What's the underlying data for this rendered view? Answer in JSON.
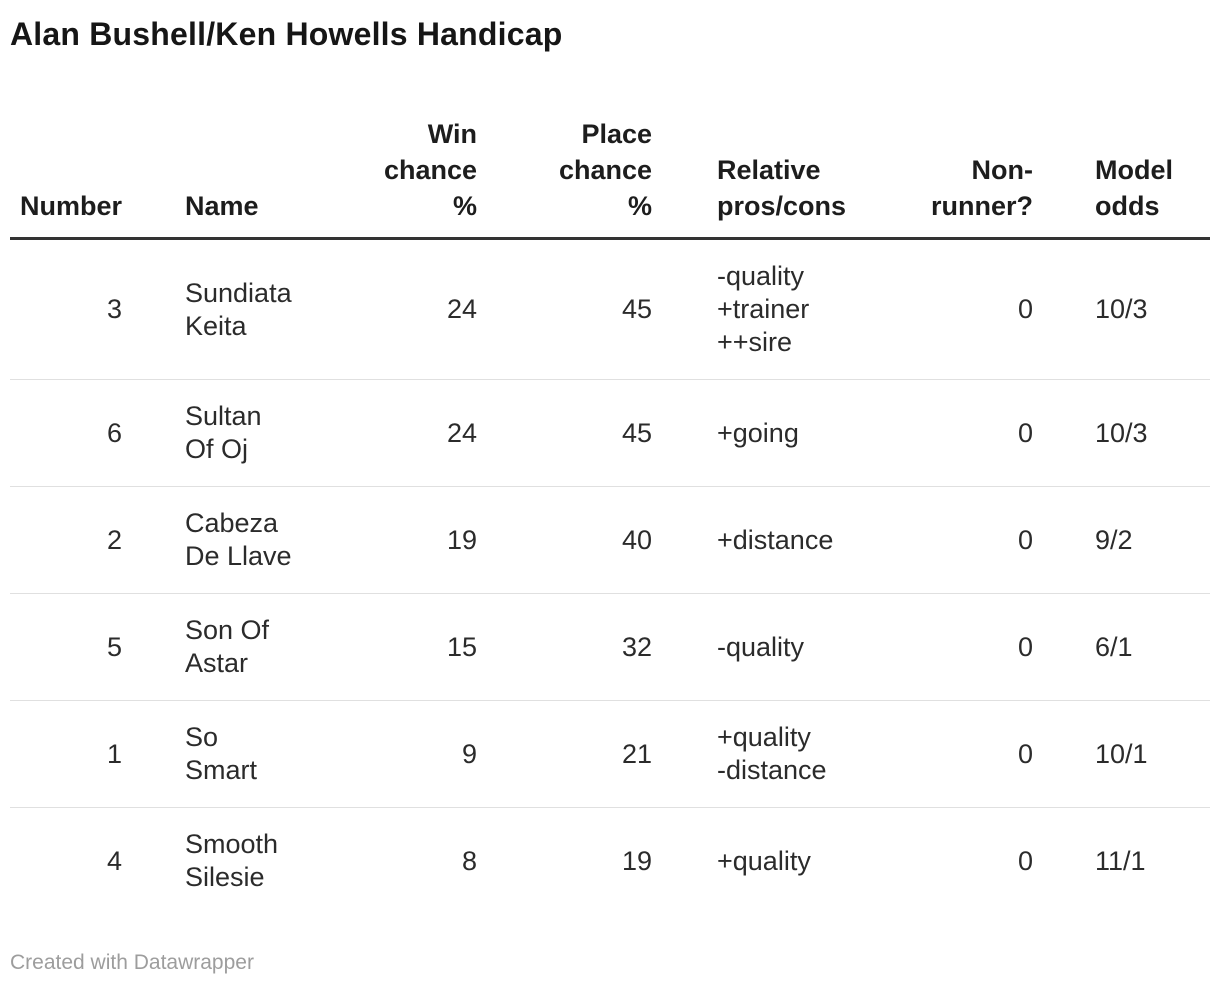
{
  "title": "Alan Bushell/Ken Howells Handicap",
  "table": {
    "columns": [
      {
        "label": "Number"
      },
      {
        "label": "Name"
      },
      {
        "label": "Win\nchance\n%"
      },
      {
        "label": "Place\nchance\n%"
      },
      {
        "label": "Relative\npros/cons"
      },
      {
        "label": "Non-\nrunner?"
      },
      {
        "label": "Model\nodds"
      }
    ],
    "rows": [
      {
        "number": "3",
        "name": "Sundiata\nKeita",
        "win": "24",
        "place": "45",
        "pros_cons": "-quality\n+trainer\n++sire",
        "non_runner": "0",
        "odds": "10/3"
      },
      {
        "number": "6",
        "name": "Sultan\nOf Oj",
        "win": "24",
        "place": "45",
        "pros_cons": "+going",
        "non_runner": "0",
        "odds": "10/3"
      },
      {
        "number": "2",
        "name": "Cabeza\nDe Llave",
        "win": "19",
        "place": "40",
        "pros_cons": "+distance",
        "non_runner": "0",
        "odds": "9/2"
      },
      {
        "number": "5",
        "name": "Son Of\nAstar",
        "win": "15",
        "place": "32",
        "pros_cons": "-quality",
        "non_runner": "0",
        "odds": "6/1"
      },
      {
        "number": "1",
        "name": "So\nSmart",
        "win": "9",
        "place": "21",
        "pros_cons": "+quality\n-distance",
        "non_runner": "0",
        "odds": "10/1"
      },
      {
        "number": "4",
        "name": "Smooth\nSilesie",
        "win": "8",
        "place": "19",
        "pros_cons": "+quality",
        "non_runner": "0",
        "odds": "11/1"
      }
    ]
  },
  "footer": {
    "attribution": "Created with Datawrapper"
  },
  "colors": {
    "background": "#ffffff",
    "title_text": "#161616",
    "header_text": "#1d1d1d",
    "body_text": "#2b2b2b",
    "header_rule": "#333333",
    "row_divider": "#e0e0e0",
    "footer_text": "#9d9d9d"
  },
  "chart_data": {
    "type": "table",
    "title": "Alan Bushell/Ken Howells Handicap",
    "columns": [
      "Number",
      "Name",
      "Win chance %",
      "Place chance %",
      "Relative pros/cons",
      "Non-runner?",
      "Model odds"
    ],
    "rows": [
      [
        3,
        "Sundiata Keita",
        24,
        45,
        "-quality +trainer ++sire",
        0,
        "10/3"
      ],
      [
        6,
        "Sultan Of Oj",
        24,
        45,
        "+going",
        0,
        "10/3"
      ],
      [
        2,
        "Cabeza De Llave",
        19,
        40,
        "+distance",
        0,
        "9/2"
      ],
      [
        5,
        "Son Of Astar",
        15,
        32,
        "-quality",
        0,
        "6/1"
      ],
      [
        1,
        "So Smart",
        9,
        21,
        "+quality -distance",
        0,
        "10/1"
      ],
      [
        4,
        "Smooth Silesie",
        8,
        19,
        "+quality",
        0,
        "11/1"
      ]
    ],
    "layout": {
      "grid": "horizontal row dividers only",
      "header_rule": "thick dark line",
      "numeric_columns_right_aligned": true
    }
  }
}
